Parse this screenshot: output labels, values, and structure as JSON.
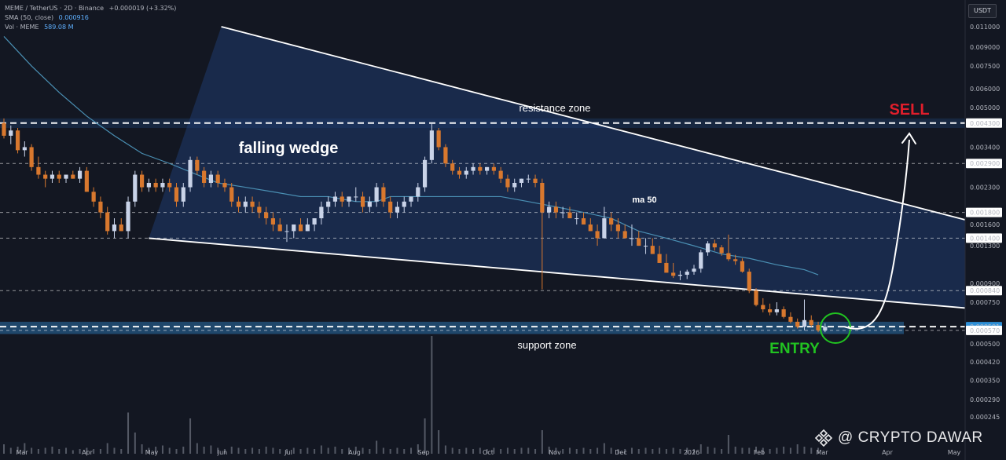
{
  "header": {
    "symbol_line": "MEME / TetherUS · 2D · Binance",
    "change": "+0.000019 (+3.32%)",
    "sma_label": "SMA (50, close)",
    "sma_value": "0.000916",
    "vol_label": "Vol · MEME",
    "vol_value": "589.08 M",
    "currency": "USDT"
  },
  "watermark": {
    "icon": "binance-diamond-icon",
    "text": "@ CRYPTO DAWAR"
  },
  "chart_data": {
    "type": "candlestick",
    "pair": "MEME / TetherUS",
    "interval": "2D",
    "exchange": "Binance",
    "y_scale": "log",
    "ylim": [
      0.0002,
      0.012
    ],
    "y_tick_labels": [
      "0.011000",
      "0.009000",
      "0.007500",
      "0.006000",
      "0.005000",
      "0.004300",
      "0.003400",
      "0.002900",
      "0.002300",
      "0.001800",
      "0.001600",
      "0.001400",
      "0.001300",
      "0.000900",
      "0.000840",
      "0.000750",
      "0.000591",
      "0.000570",
      "0.000500",
      "0.000420",
      "0.000350",
      "0.000290",
      "0.000245"
    ],
    "y_tick_values": [
      0.011,
      0.009,
      0.0075,
      0.006,
      0.005,
      0.0043,
      0.0034,
      0.0029,
      0.0023,
      0.0018,
      0.0016,
      0.0014,
      0.0013,
      0.0009,
      0.00084,
      0.00075,
      0.000591,
      0.00057,
      0.0005,
      0.00042,
      0.00035,
      0.00029,
      0.000245
    ],
    "highlight_levels": [
      {
        "value": 0.0043,
        "label": "0.004300",
        "color": "#ffffff"
      },
      {
        "value": 0.0029,
        "label": "0.002900",
        "color": "#ffffff"
      },
      {
        "value": 0.0018,
        "label": "0.001800",
        "color": "#ffffff"
      },
      {
        "value": 0.0014,
        "label": "0.001400",
        "color": "#ffffff"
      },
      {
        "value": 0.00084,
        "label": "0.000840",
        "color": "#ffffff"
      },
      {
        "value": 0.000591,
        "label": "0.000591",
        "color": "#2e8fd6"
      },
      {
        "value": 0.00057,
        "label": "0.000570",
        "color": "#ffffff"
      }
    ],
    "x_labels": [
      "Mar",
      "Apr",
      "May",
      "Jun",
      "Jul",
      "Aug",
      "Sep",
      "Oct",
      "Nov",
      "Dec",
      "2026",
      "Feb",
      "Mar",
      "Apr",
      "May"
    ],
    "x_start": "2025-03-01",
    "candles": [
      [
        0.0043,
        0.0045,
        0.0037,
        0.0038
      ],
      [
        0.0038,
        0.0042,
        0.0035,
        0.004
      ],
      [
        0.004,
        0.0041,
        0.0032,
        0.0033
      ],
      [
        0.0033,
        0.0036,
        0.0031,
        0.0034
      ],
      [
        0.0034,
        0.0035,
        0.0027,
        0.0028
      ],
      [
        0.0028,
        0.0031,
        0.0025,
        0.0026
      ],
      [
        0.0026,
        0.0027,
        0.0023,
        0.0025
      ],
      [
        0.0025,
        0.0027,
        0.0024,
        0.0026
      ],
      [
        0.0026,
        0.0027,
        0.0024,
        0.0025
      ],
      [
        0.0025,
        0.0026,
        0.0024,
        0.0026
      ],
      [
        0.0026,
        0.0027,
        0.0025,
        0.0025
      ],
      [
        0.0025,
        0.0028,
        0.0024,
        0.0027
      ],
      [
        0.0027,
        0.0028,
        0.0022,
        0.0022
      ],
      [
        0.0022,
        0.0023,
        0.0019,
        0.002
      ],
      [
        0.002,
        0.0021,
        0.0017,
        0.0018
      ],
      [
        0.0018,
        0.0019,
        0.00145,
        0.0015
      ],
      [
        0.0015,
        0.0017,
        0.0014,
        0.0016
      ],
      [
        0.0016,
        0.0017,
        0.0015,
        0.0015
      ],
      [
        0.0015,
        0.0021,
        0.0014,
        0.002
      ],
      [
        0.002,
        0.0027,
        0.0019,
        0.0026
      ],
      [
        0.0026,
        0.0027,
        0.0022,
        0.0023
      ],
      [
        0.0023,
        0.0025,
        0.0022,
        0.0024
      ],
      [
        0.0024,
        0.0025,
        0.0022,
        0.0023
      ],
      [
        0.0023,
        0.0025,
        0.0022,
        0.0024
      ],
      [
        0.0024,
        0.0025,
        0.0022,
        0.0023
      ],
      [
        0.0023,
        0.0024,
        0.0019,
        0.002
      ],
      [
        0.002,
        0.0024,
        0.0019,
        0.0023
      ],
      [
        0.0023,
        0.0031,
        0.0022,
        0.003
      ],
      [
        0.003,
        0.0031,
        0.0026,
        0.0027
      ],
      [
        0.0027,
        0.0028,
        0.0023,
        0.0024
      ],
      [
        0.0024,
        0.0027,
        0.0023,
        0.0026
      ],
      [
        0.0026,
        0.0027,
        0.0023,
        0.0024
      ],
      [
        0.0024,
        0.0025,
        0.0022,
        0.0023
      ],
      [
        0.0023,
        0.0024,
        0.0019,
        0.002
      ],
      [
        0.002,
        0.0021,
        0.0018,
        0.0019
      ],
      [
        0.0019,
        0.0021,
        0.0018,
        0.002
      ],
      [
        0.002,
        0.0021,
        0.0018,
        0.0019
      ],
      [
        0.0019,
        0.002,
        0.0017,
        0.0018
      ],
      [
        0.0018,
        0.0019,
        0.0016,
        0.0017
      ],
      [
        0.0017,
        0.0018,
        0.0015,
        0.0016
      ],
      [
        0.0016,
        0.0017,
        0.0015,
        0.0015
      ],
      [
        0.0015,
        0.0016,
        0.00135,
        0.0015
      ],
      [
        0.0015,
        0.0016,
        0.0014,
        0.0016
      ],
      [
        0.0016,
        0.0017,
        0.0015,
        0.0015
      ],
      [
        0.0015,
        0.0017,
        0.0015,
        0.0016
      ],
      [
        0.0016,
        0.0017,
        0.0015,
        0.0017
      ],
      [
        0.0017,
        0.002,
        0.0016,
        0.0019
      ],
      [
        0.0019,
        0.0021,
        0.0018,
        0.002
      ],
      [
        0.002,
        0.0022,
        0.0019,
        0.0021
      ],
      [
        0.0021,
        0.0022,
        0.0019,
        0.002
      ],
      [
        0.002,
        0.0021,
        0.0019,
        0.0021
      ],
      [
        0.0021,
        0.0023,
        0.002,
        0.0021
      ],
      [
        0.0021,
        0.0022,
        0.0018,
        0.0019
      ],
      [
        0.0019,
        0.0021,
        0.0018,
        0.002
      ],
      [
        0.002,
        0.0024,
        0.0019,
        0.0023
      ],
      [
        0.0023,
        0.0024,
        0.0019,
        0.002
      ],
      [
        0.002,
        0.0021,
        0.0017,
        0.0018
      ],
      [
        0.0018,
        0.002,
        0.0017,
        0.0019
      ],
      [
        0.0019,
        0.0021,
        0.0018,
        0.002
      ],
      [
        0.002,
        0.0021,
        0.0019,
        0.0021
      ],
      [
        0.0021,
        0.0024,
        0.002,
        0.0023
      ],
      [
        0.0023,
        0.0031,
        0.0022,
        0.003
      ],
      [
        0.003,
        0.0043,
        0.0029,
        0.004
      ],
      [
        0.004,
        0.0041,
        0.0033,
        0.0034
      ],
      [
        0.0034,
        0.0035,
        0.0028,
        0.0029
      ],
      [
        0.0029,
        0.003,
        0.0026,
        0.0027
      ],
      [
        0.0027,
        0.0028,
        0.0025,
        0.0026
      ],
      [
        0.0026,
        0.0028,
        0.0025,
        0.0027
      ],
      [
        0.0027,
        0.0029,
        0.0026,
        0.0028
      ],
      [
        0.0028,
        0.0029,
        0.0026,
        0.0027
      ],
      [
        0.0027,
        0.0028,
        0.0026,
        0.0028
      ],
      [
        0.0028,
        0.0029,
        0.0026,
        0.0027
      ],
      [
        0.0027,
        0.0028,
        0.0024,
        0.0025
      ],
      [
        0.0025,
        0.0026,
        0.0022,
        0.0023
      ],
      [
        0.0023,
        0.0025,
        0.0022,
        0.0024
      ],
      [
        0.0024,
        0.0025,
        0.0023,
        0.0025
      ],
      [
        0.0025,
        0.0026,
        0.0024,
        0.0025
      ],
      [
        0.0025,
        0.0026,
        0.0023,
        0.0024
      ],
      [
        0.0024,
        0.0025,
        0.00085,
        0.0018
      ],
      [
        0.0018,
        0.002,
        0.0017,
        0.0019
      ],
      [
        0.0019,
        0.002,
        0.0017,
        0.0018
      ],
      [
        0.0018,
        0.0019,
        0.0017,
        0.0018
      ],
      [
        0.0018,
        0.0019,
        0.0017,
        0.0017
      ],
      [
        0.0017,
        0.0018,
        0.0016,
        0.0017
      ],
      [
        0.0017,
        0.0018,
        0.0016,
        0.0016
      ],
      [
        0.0016,
        0.0017,
        0.0015,
        0.0015
      ],
      [
        0.0015,
        0.0016,
        0.0013,
        0.0014
      ],
      [
        0.0014,
        0.0019,
        0.0014,
        0.0017
      ],
      [
        0.0017,
        0.0018,
        0.0015,
        0.0016
      ],
      [
        0.0016,
        0.0017,
        0.0014,
        0.0015
      ],
      [
        0.0015,
        0.0016,
        0.0014,
        0.0014
      ],
      [
        0.0014,
        0.0016,
        0.0013,
        0.0014
      ],
      [
        0.0014,
        0.0015,
        0.0013,
        0.0013
      ],
      [
        0.0013,
        0.0014,
        0.0012,
        0.0013
      ],
      [
        0.0013,
        0.0014,
        0.0012,
        0.0012
      ],
      [
        0.0012,
        0.0013,
        0.0011,
        0.0011
      ],
      [
        0.0011,
        0.0012,
        0.001,
        0.001
      ],
      [
        0.001,
        0.0011,
        0.00095,
        0.00097
      ],
      [
        0.00097,
        0.00102,
        0.00093,
        0.00098
      ],
      [
        0.00098,
        0.00103,
        0.00094,
        0.00101
      ],
      [
        0.00101,
        0.00108,
        0.00098,
        0.00104
      ],
      [
        0.00104,
        0.00125,
        0.001,
        0.00122
      ],
      [
        0.00122,
        0.00136,
        0.00118,
        0.00133
      ],
      [
        0.00133,
        0.00138,
        0.00124,
        0.00128
      ],
      [
        0.00128,
        0.00131,
        0.00118,
        0.00121
      ],
      [
        0.00121,
        0.00145,
        0.00112,
        0.00114
      ],
      [
        0.00114,
        0.00119,
        0.00108,
        0.00112
      ],
      [
        0.00112,
        0.00115,
        0.001,
        0.00101
      ],
      [
        0.00101,
        0.00104,
        0.00082,
        0.00084
      ],
      [
        0.00084,
        0.00086,
        0.00072,
        0.00073
      ],
      [
        0.00073,
        0.00078,
        0.00068,
        0.0007
      ],
      [
        0.0007,
        0.00074,
        0.00066,
        0.00068
      ],
      [
        0.00068,
        0.00075,
        0.00066,
        0.0007
      ],
      [
        0.0007,
        0.00072,
        0.00064,
        0.00065
      ],
      [
        0.00065,
        0.00068,
        0.00061,
        0.00062
      ],
      [
        0.00062,
        0.00064,
        0.00058,
        0.00059
      ],
      [
        0.00059,
        0.00077,
        0.00057,
        0.00063
      ],
      [
        0.00063,
        0.00066,
        0.00059,
        0.0006
      ],
      [
        0.0006,
        0.00062,
        0.00056,
        0.00057
      ],
      [
        0.00057,
        0.00061,
        0.00056,
        0.00059
      ]
    ],
    "sma_50_points": [
      [
        0,
        0.01
      ],
      [
        8,
        0.0075
      ],
      [
        16,
        0.0058
      ],
      [
        24,
        0.0046
      ],
      [
        32,
        0.0038
      ],
      [
        40,
        0.0032
      ],
      [
        48,
        0.0029
      ],
      [
        56,
        0.0026
      ],
      [
        62,
        0.0024
      ],
      [
        70,
        0.0023
      ],
      [
        78,
        0.0022
      ],
      [
        86,
        0.0021
      ],
      [
        94,
        0.0021
      ],
      [
        102,
        0.002
      ],
      [
        108,
        0.002
      ],
      [
        112,
        0.0021
      ],
      [
        120,
        0.0021
      ],
      [
        128,
        0.0021
      ],
      [
        136,
        0.0021
      ],
      [
        144,
        0.0021
      ],
      [
        152,
        0.002
      ],
      [
        160,
        0.0019
      ],
      [
        168,
        0.0018
      ],
      [
        176,
        0.0017
      ],
      [
        184,
        0.0015
      ],
      [
        192,
        0.0014
      ],
      [
        200,
        0.0013
      ],
      [
        208,
        0.0012
      ],
      [
        216,
        0.00115
      ],
      [
        224,
        0.00108
      ],
      [
        232,
        0.00103
      ],
      [
        236,
        0.00098
      ]
    ],
    "volume": {
      "unit": "relative",
      "values": [
        0.08,
        0.05,
        0.06,
        0.09,
        0.05,
        0.04,
        0.05,
        0.06,
        0.04,
        0.05,
        0.03,
        0.04,
        0.05,
        0.04,
        0.04,
        0.09,
        0.05,
        0.04,
        0.35,
        0.18,
        0.08,
        0.05,
        0.06,
        0.07,
        0.05,
        0.04,
        0.06,
        0.3,
        0.09,
        0.06,
        0.07,
        0.05,
        0.04,
        0.06,
        0.05,
        0.04,
        0.05,
        0.04,
        0.06,
        0.05,
        0.04,
        0.04,
        0.05,
        0.04,
        0.05,
        0.04,
        0.07,
        0.05,
        0.06,
        0.04,
        0.05,
        0.06,
        0.05,
        0.04,
        0.11,
        0.05,
        0.04,
        0.05,
        0.04,
        0.05,
        0.08,
        0.3,
        1.0,
        0.2,
        0.07,
        0.05,
        0.04,
        0.05,
        0.04,
        0.05,
        0.04,
        0.05,
        0.04,
        0.05,
        0.04,
        0.05,
        0.05,
        0.04,
        0.2,
        0.06,
        0.05,
        0.04,
        0.05,
        0.04,
        0.05,
        0.04,
        0.05,
        0.09,
        0.05,
        0.04,
        0.04,
        0.05,
        0.04,
        0.05,
        0.04,
        0.05,
        0.04,
        0.05,
        0.04,
        0.05,
        0.04,
        0.08,
        0.06,
        0.05,
        0.04,
        0.16,
        0.06,
        0.05,
        0.05,
        0.06,
        0.05,
        0.04,
        0.05,
        0.06,
        0.05,
        0.08,
        0.06,
        0.05,
        0.05
      ]
    },
    "annotations": {
      "resistance_label": "resistance zone",
      "support_label": "support zone",
      "pattern_label": "falling wedge",
      "ma_label": "ma 50",
      "sell_label": "SELL",
      "entry_label": "ENTRY"
    },
    "wedge": {
      "upper_start": [
        "2025-05-03",
        0.011
      ],
      "upper_end": [
        "2026-04-05",
        0.00058
      ],
      "lower_start": [
        "2025-04-12",
        0.0014
      ],
      "lower_end": [
        "2026-04-05",
        0.0005
      ]
    },
    "zones": {
      "resistance": [
        0.0041,
        0.0045
      ],
      "support": [
        0.00055,
        0.00062
      ]
    },
    "colors": {
      "background": "#131722",
      "up": "#c9d3e8",
      "down": "#d8782e",
      "sma": "#4a8fb3",
      "wedge_fill": "#1f3a6e",
      "zone_fill": "#1c3b66",
      "support_zone_fill": "#2a6fa8",
      "sell": "#e01e2b",
      "entry": "#21c321",
      "arrow": "#ffffff"
    },
    "grid": false,
    "legend": "top-left"
  }
}
